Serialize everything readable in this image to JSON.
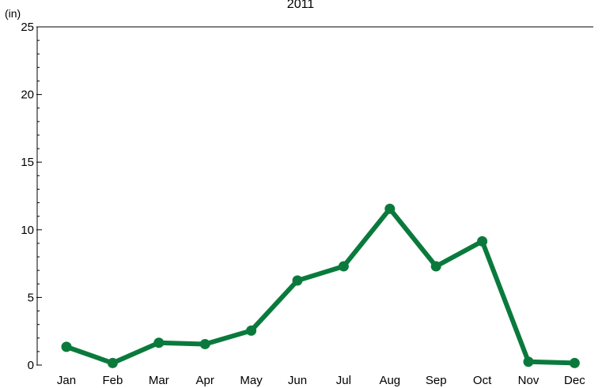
{
  "chart_data": {
    "type": "line",
    "title": "2011",
    "ylabel": "(in)",
    "xlabel": "",
    "categories": [
      "Jan",
      "Feb",
      "Mar",
      "Apr",
      "May",
      "Jun",
      "Jul",
      "Aug",
      "Sep",
      "Oct",
      "Nov",
      "Dec"
    ],
    "series": [
      {
        "values": [
          1.35,
          0.15,
          1.65,
          1.55,
          2.55,
          6.25,
          7.3,
          11.55,
          7.3,
          9.15,
          0.25,
          0.15
        ]
      }
    ],
    "ylim": [
      0,
      25
    ],
    "yticks": [
      0,
      5,
      10,
      15,
      20,
      25
    ],
    "y_minor_step": 1,
    "line_color": "#0a7a3c",
    "grid": false
  }
}
